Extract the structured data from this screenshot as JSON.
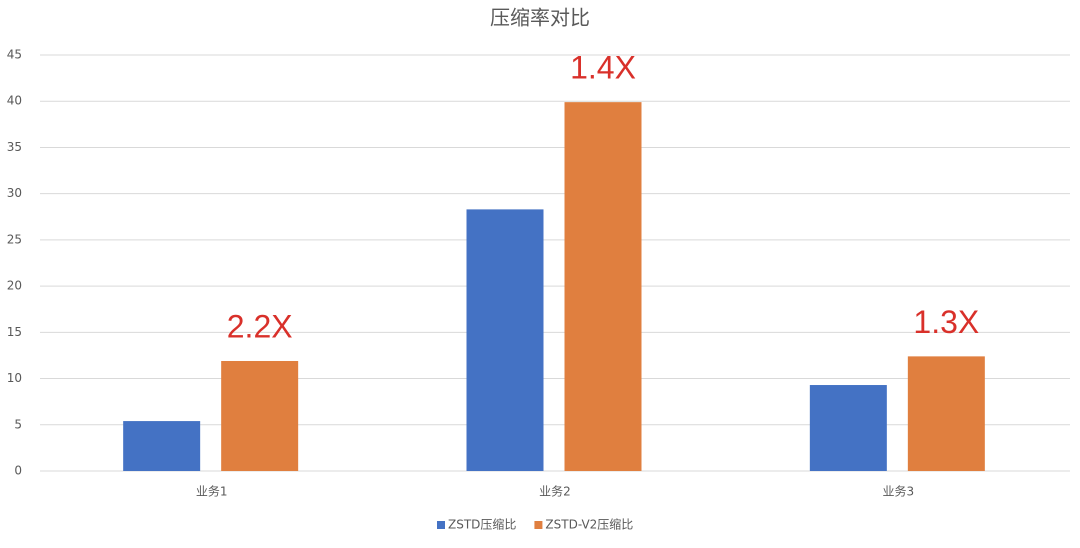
{
  "chart_data": {
    "type": "bar",
    "title": "压缩率对比",
    "categories": [
      "业务1",
      "业务2",
      "业务3"
    ],
    "series": [
      {
        "name": "ZSTD压缩比",
        "color": "#4472c4",
        "values": [
          5.4,
          28.3,
          9.3
        ]
      },
      {
        "name": "ZSTD-V2压缩比",
        "color": "#e07f3f",
        "values": [
          11.9,
          39.9,
          12.4
        ]
      }
    ],
    "annotations": [
      "2.2X",
      "1.4X",
      "1.3X"
    ],
    "annotation_color": "#d9302a",
    "ylim": [
      0,
      45
    ],
    "yticks": [
      0,
      5,
      10,
      15,
      20,
      25,
      30,
      35,
      40,
      45
    ],
    "grid": true,
    "legend": "bottom"
  }
}
